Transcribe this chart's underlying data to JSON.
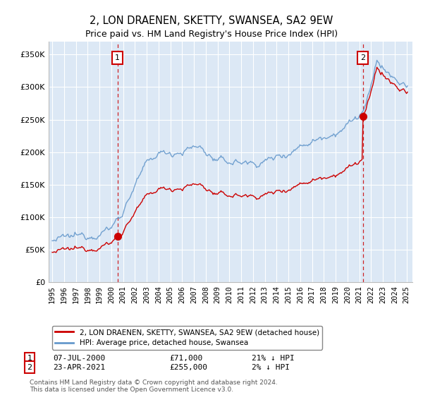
{
  "title": "2, LON DRAENEN, SKETTY, SWANSEA, SA2 9EW",
  "subtitle": "Price paid vs. HM Land Registry's House Price Index (HPI)",
  "sale1_date": "07-JUL-2000",
  "sale1_price": 71000,
  "sale1_label": "21% ↓ HPI",
  "sale2_date": "23-APR-2021",
  "sale2_price": 255000,
  "sale2_label": "2% ↓ HPI",
  "sale1_x": 2000.52,
  "sale2_x": 2021.31,
  "ylim": [
    0,
    370000
  ],
  "yticks": [
    0,
    50000,
    100000,
    150000,
    200000,
    250000,
    300000,
    350000
  ],
  "xlim_start": 1994.7,
  "xlim_end": 2025.5,
  "legend_label_red": "2, LON DRAENEN, SKETTY, SWANSEA, SA2 9EW (detached house)",
  "legend_label_blue": "HPI: Average price, detached house, Swansea",
  "footer": "Contains HM Land Registry data © Crown copyright and database right 2024.\nThis data is licensed under the Open Government Licence v3.0.",
  "red_color": "#cc0000",
  "blue_color": "#6699cc",
  "vline_color": "#cc0000",
  "bg_color": "#dce8f5",
  "grid_color": "#ffffff",
  "annotation_box_color": "#cc0000"
}
